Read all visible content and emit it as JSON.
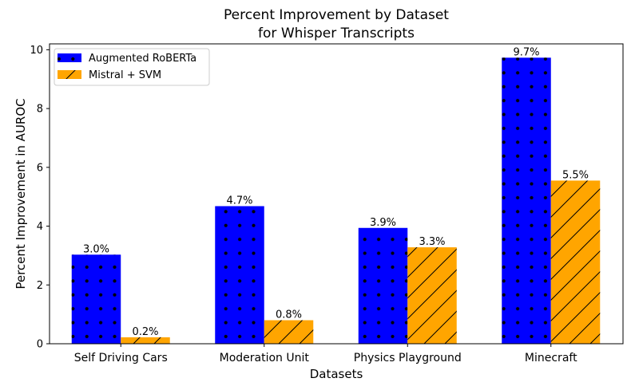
{
  "chart_data": {
    "type": "bar",
    "title": "Percent Improvement by Dataset",
    "subtitle": "for Whisper Transcripts",
    "xlabel": "Datasets",
    "ylabel": "Percent Improvement in AUROC",
    "categories": [
      "Self Driving Cars",
      "Moderation Unit",
      "Physics Playground",
      "Minecraft"
    ],
    "ylim": [
      0,
      10.2
    ],
    "yticks": [
      0,
      2,
      4,
      6,
      8,
      10
    ],
    "legend_position": "top-left",
    "series": [
      {
        "name": "Augmented RoBERTa",
        "color": "#0000ff",
        "hatch": "dots",
        "values": [
          3.03,
          4.68,
          3.94,
          9.73
        ],
        "labels": [
          "3.0%",
          "4.7%",
          "3.9%",
          "9.7%"
        ]
      },
      {
        "name": "Mistral + SVM",
        "color": "#ffa500",
        "hatch": "diagonal",
        "values": [
          0.22,
          0.8,
          3.28,
          5.55
        ],
        "labels": [
          "0.2%",
          "0.8%",
          "3.3%",
          "5.5%"
        ]
      }
    ]
  }
}
